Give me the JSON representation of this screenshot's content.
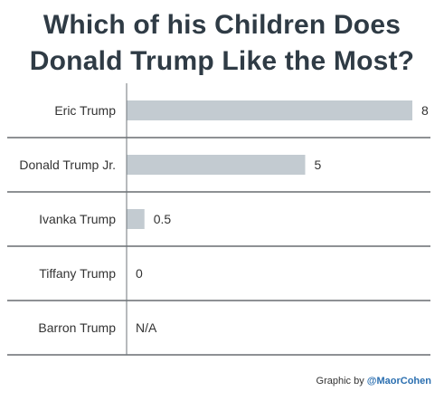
{
  "title_lines": [
    "Which of his Children Does",
    "Donald Trump Like the Most?"
  ],
  "credit": {
    "prefix": "Graphic by ",
    "handle": "@MaorCohen"
  },
  "colors": {
    "bar": "#c3cbd1",
    "rule": "#4a4f54",
    "axis": "#6f757a",
    "label": "#333333"
  },
  "chart_data": {
    "type": "bar",
    "orientation": "horizontal",
    "categories": [
      "Eric Trump",
      "Donald Trump Jr.",
      "Ivanka Trump",
      "Tiffany Trump",
      "Barron Trump"
    ],
    "values": [
      8,
      5,
      0.5,
      0,
      null
    ],
    "value_labels": [
      "8",
      "5",
      "0.5",
      "0",
      "N/A"
    ],
    "title": "Which of his Children Does Donald Trump Like the Most?",
    "xlim": [
      0,
      8
    ],
    "grid": false
  }
}
